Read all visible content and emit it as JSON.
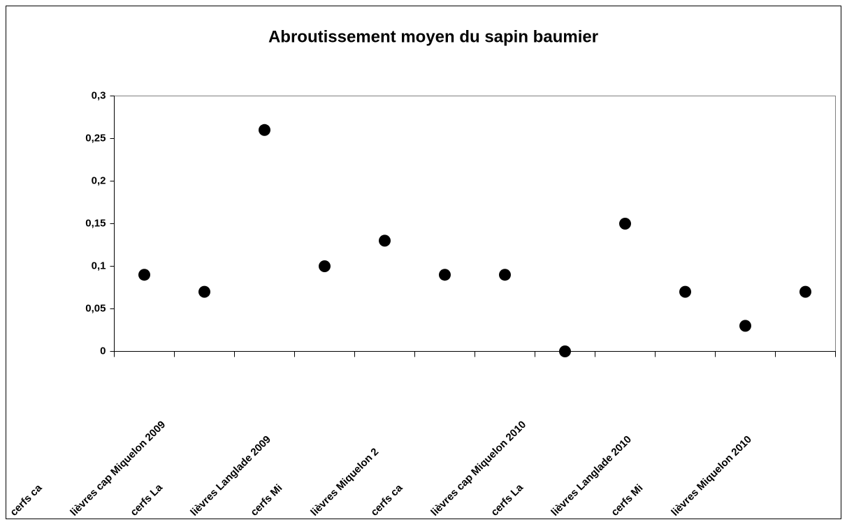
{
  "chart_data": {
    "type": "scatter",
    "title": "Abroutissement moyen du sapin baumier",
    "categories": [
      "cerfs ca",
      "lièvres cap Miquelon 2009",
      "cerfs La",
      "lièvres Langlade 2009",
      "cerfs Mi",
      "lièvres Miquelon 2",
      "cerfs ca",
      "lièvres cap Miquelon 2010",
      "cerfs La",
      "lièvres Langlade 2010",
      "cerfs Mi",
      "lièvres Miquelon 2010"
    ],
    "values": [
      0.09,
      0.07,
      0.26,
      0.1,
      0.13,
      0.09,
      0.09,
      0,
      0.15,
      0.07,
      0.03,
      0.07
    ],
    "color": "#000000",
    "ylim": [
      0,
      0.3
    ],
    "yticks": [
      0,
      {
        "value": 0.05,
        "label": "0,05"
      },
      {
        "value": 0.1,
        "label": "0,1"
      },
      {
        "value": 0.15,
        "label": "0,15"
      },
      {
        "value": 0.2,
        "label": "0,2"
      },
      {
        "value": 0.25,
        "label": "0,25"
      },
      {
        "value": 0.3,
        "label": "0,3"
      }
    ]
  }
}
